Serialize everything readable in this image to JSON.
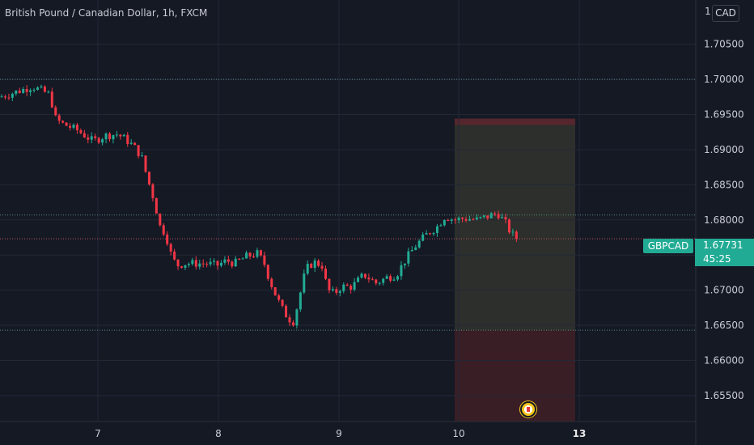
{
  "header": {
    "title": "British Pound / Canadian Dollar, 1h, FXCM",
    "currency_button": "CAD",
    "top_axis_label": "1"
  },
  "badges": {
    "symbol": "GBPCAD",
    "price": "1.67731",
    "countdown": "45:25"
  },
  "colors": {
    "background": "#151924",
    "up": "#22ab94",
    "down": "#f23645",
    "target_zone": "#5a5a3a",
    "stop_zone": "#4a2128"
  },
  "chart_data": {
    "type": "candlestick",
    "timeframe": "1h",
    "x_ticks": [
      "7",
      "8",
      "9",
      "10",
      "13"
    ],
    "y_ticks": [
      "1.65500",
      "1.66000",
      "1.66500",
      "1.67000",
      "1.67500",
      "1.68000",
      "1.68500",
      "1.69000",
      "1.69500",
      "1.70000",
      "1.70500"
    ],
    "ylim": [
      1.6513,
      1.7113
    ],
    "grid": true,
    "horizontal_levels": [
      1.7,
      1.6807,
      1.6643,
      1.67731
    ],
    "position": {
      "entry": 1.67731,
      "target": 1.6935,
      "stop": 1.6643
    },
    "approx_path": [
      [
        0,
        1.6975
      ],
      [
        22,
        1.6983
      ],
      [
        40,
        1.699
      ],
      [
        62,
        1.6978
      ],
      [
        68,
        1.6945
      ],
      [
        75,
        1.6938
      ],
      [
        95,
        1.6928
      ],
      [
        115,
        1.6912
      ],
      [
        130,
        1.692
      ],
      [
        145,
        1.6922
      ],
      [
        155,
        1.6915
      ],
      [
        165,
        1.6905
      ],
      [
        175,
        1.689
      ],
      [
        182,
        1.686
      ],
      [
        190,
        1.683
      ],
      [
        198,
        1.679
      ],
      [
        205,
        1.678
      ],
      [
        210,
        1.6755
      ],
      [
        218,
        1.6735
      ],
      [
        228,
        1.6738
      ],
      [
        240,
        1.6738
      ],
      [
        255,
        1.6738
      ],
      [
        268,
        1.6735
      ],
      [
        280,
        1.6742
      ],
      [
        290,
        1.6738
      ],
      [
        305,
        1.6748
      ],
      [
        318,
        1.6752
      ],
      [
        326,
        1.674
      ],
      [
        333,
        1.6715
      ],
      [
        340,
        1.6695
      ],
      [
        348,
        1.6675
      ],
      [
        356,
        1.666
      ],
      [
        363,
        1.6655
      ],
      [
        370,
        1.669
      ],
      [
        378,
        1.673
      ],
      [
        388,
        1.674
      ],
      [
        398,
        1.6735
      ],
      [
        405,
        1.67
      ],
      [
        413,
        1.6695
      ],
      [
        422,
        1.6705
      ],
      [
        435,
        1.6705
      ],
      [
        450,
        1.6722
      ],
      [
        465,
        1.671
      ],
      [
        478,
        1.6718
      ],
      [
        490,
        1.6722
      ],
      [
        502,
        1.6745
      ],
      [
        515,
        1.6765
      ],
      [
        528,
        1.678
      ],
      [
        540,
        1.679
      ],
      [
        550,
        1.6805
      ],
      [
        562,
        1.68
      ],
      [
        575,
        1.6802
      ],
      [
        590,
        1.68
      ],
      [
        603,
        1.6805
      ],
      [
        615,
        1.681
      ],
      [
        625,
        1.6795
      ],
      [
        632,
        1.678
      ],
      [
        640,
        1.6773
      ]
    ]
  }
}
